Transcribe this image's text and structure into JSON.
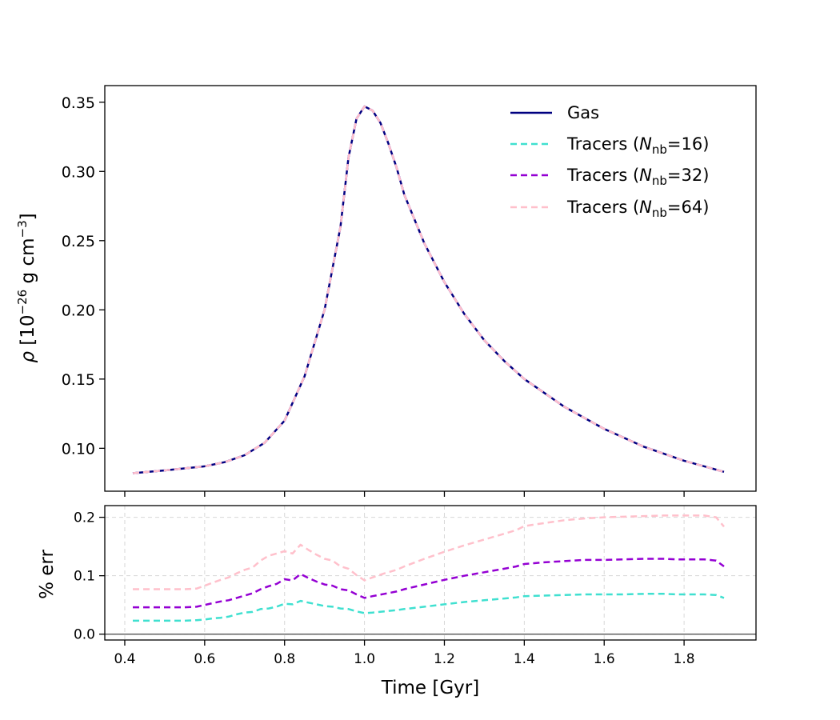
{
  "chart_data": [
    {
      "id": "density",
      "type": "line",
      "xlim": [
        0.35,
        1.98
      ],
      "ylim": [
        0.069,
        0.362
      ],
      "xticks": [
        0.4,
        0.6,
        0.8,
        1.0,
        1.2,
        1.4,
        1.6,
        1.8
      ],
      "yticks": [
        0.1,
        0.15,
        0.2,
        0.25,
        0.3,
        0.35
      ],
      "ytick_labels": [
        "0.10",
        "0.15",
        "0.20",
        "0.25",
        "0.30",
        "0.35"
      ],
      "ylabel_parts": {
        "rho": "ρ",
        "open": "[10",
        "exp": "−26",
        "unit": " g cm",
        "exp2": "−3",
        "close": "]"
      },
      "x": [
        0.42,
        0.5,
        0.6,
        0.65,
        0.7,
        0.75,
        0.8,
        0.85,
        0.9,
        0.94,
        0.96,
        0.98,
        1.0,
        1.02,
        1.04,
        1.06,
        1.08,
        1.1,
        1.15,
        1.2,
        1.25,
        1.3,
        1.35,
        1.4,
        1.5,
        1.6,
        1.7,
        1.8,
        1.9
      ],
      "y": [
        0.082,
        0.084,
        0.087,
        0.09,
        0.095,
        0.104,
        0.12,
        0.152,
        0.2,
        0.26,
        0.31,
        0.338,
        0.347,
        0.344,
        0.335,
        0.32,
        0.303,
        0.283,
        0.248,
        0.22,
        0.197,
        0.178,
        0.163,
        0.15,
        0.13,
        0.114,
        0.101,
        0.091,
        0.083
      ],
      "series": [
        {
          "name": "Gas",
          "color": "#000080",
          "style": "solid"
        },
        {
          "name_prefix": "Tracers (",
          "name_sym": "N",
          "name_sub": "nb",
          "name_suffix": "=16)",
          "color": "#40e0d0",
          "style": "dashed"
        },
        {
          "name_prefix": "Tracers (",
          "name_sym": "N",
          "name_sub": "nb",
          "name_suffix": "=32)",
          "color": "#9400d3",
          "style": "dashed"
        },
        {
          "name_prefix": "Tracers (",
          "name_sym": "N",
          "name_sub": "nb",
          "name_suffix": "=64)",
          "color": "#ffc0cb",
          "style": "dashed"
        }
      ],
      "legend": "top-right"
    },
    {
      "id": "error",
      "type": "line",
      "xlim": [
        0.35,
        1.98
      ],
      "ylim": [
        -0.01,
        0.22
      ],
      "xticks": [
        0.4,
        0.6,
        0.8,
        1.0,
        1.2,
        1.4,
        1.6,
        1.8
      ],
      "xtick_labels": [
        "0.4",
        "0.6",
        "0.8",
        "1.0",
        "1.2",
        "1.4",
        "1.6",
        "1.8"
      ],
      "yticks": [
        0.0,
        0.1,
        0.2
      ],
      "ytick_labels": [
        "0.0",
        "0.1",
        "0.2"
      ],
      "xlabel": "Time [Gyr]",
      "ylabel": "% err",
      "grid": true,
      "zero_line": true,
      "x": [
        0.42,
        0.45,
        0.5,
        0.55,
        0.58,
        0.6,
        0.62,
        0.64,
        0.66,
        0.68,
        0.7,
        0.72,
        0.74,
        0.76,
        0.78,
        0.8,
        0.82,
        0.84,
        0.86,
        0.88,
        0.9,
        0.92,
        0.94,
        0.96,
        0.98,
        1.0,
        1.02,
        1.05,
        1.08,
        1.1,
        1.15,
        1.2,
        1.25,
        1.3,
        1.35,
        1.38,
        1.4,
        1.45,
        1.5,
        1.55,
        1.6,
        1.65,
        1.7,
        1.75,
        1.78,
        1.8,
        1.85,
        1.88,
        1.9
      ],
      "series": [
        {
          "name": "Tracers (Nnb=16)",
          "color": "#40e0d0",
          "values": [
            0.023,
            0.023,
            0.023,
            0.023,
            0.024,
            0.025,
            0.027,
            0.028,
            0.03,
            0.034,
            0.037,
            0.038,
            0.043,
            0.044,
            0.047,
            0.052,
            0.051,
            0.057,
            0.054,
            0.051,
            0.048,
            0.047,
            0.044,
            0.043,
            0.039,
            0.036,
            0.037,
            0.039,
            0.041,
            0.043,
            0.047,
            0.051,
            0.055,
            0.058,
            0.061,
            0.063,
            0.065,
            0.066,
            0.067,
            0.068,
            0.068,
            0.068,
            0.069,
            0.069,
            0.068,
            0.068,
            0.068,
            0.067,
            0.062
          ]
        },
        {
          "name": "Tracers (Nnb=32)",
          "color": "#9400d3",
          "values": [
            0.046,
            0.046,
            0.046,
            0.046,
            0.047,
            0.05,
            0.053,
            0.056,
            0.058,
            0.062,
            0.066,
            0.07,
            0.077,
            0.082,
            0.086,
            0.094,
            0.092,
            0.103,
            0.096,
            0.09,
            0.085,
            0.083,
            0.077,
            0.075,
            0.068,
            0.062,
            0.065,
            0.069,
            0.073,
            0.077,
            0.085,
            0.093,
            0.1,
            0.106,
            0.112,
            0.116,
            0.12,
            0.123,
            0.125,
            0.127,
            0.127,
            0.128,
            0.129,
            0.129,
            0.128,
            0.128,
            0.128,
            0.126,
            0.116
          ]
        },
        {
          "name": "Tracers (Nnb=64)",
          "color": "#ffc0cb",
          "values": [
            0.077,
            0.077,
            0.077,
            0.077,
            0.078,
            0.083,
            0.088,
            0.093,
            0.097,
            0.104,
            0.11,
            0.114,
            0.126,
            0.134,
            0.138,
            0.142,
            0.138,
            0.153,
            0.144,
            0.136,
            0.129,
            0.126,
            0.116,
            0.112,
            0.101,
            0.092,
            0.097,
            0.104,
            0.11,
            0.116,
            0.129,
            0.141,
            0.152,
            0.162,
            0.172,
            0.178,
            0.185,
            0.19,
            0.195,
            0.198,
            0.2,
            0.201,
            0.202,
            0.203,
            0.203,
            0.203,
            0.203,
            0.2,
            0.184
          ]
        }
      ]
    }
  ]
}
